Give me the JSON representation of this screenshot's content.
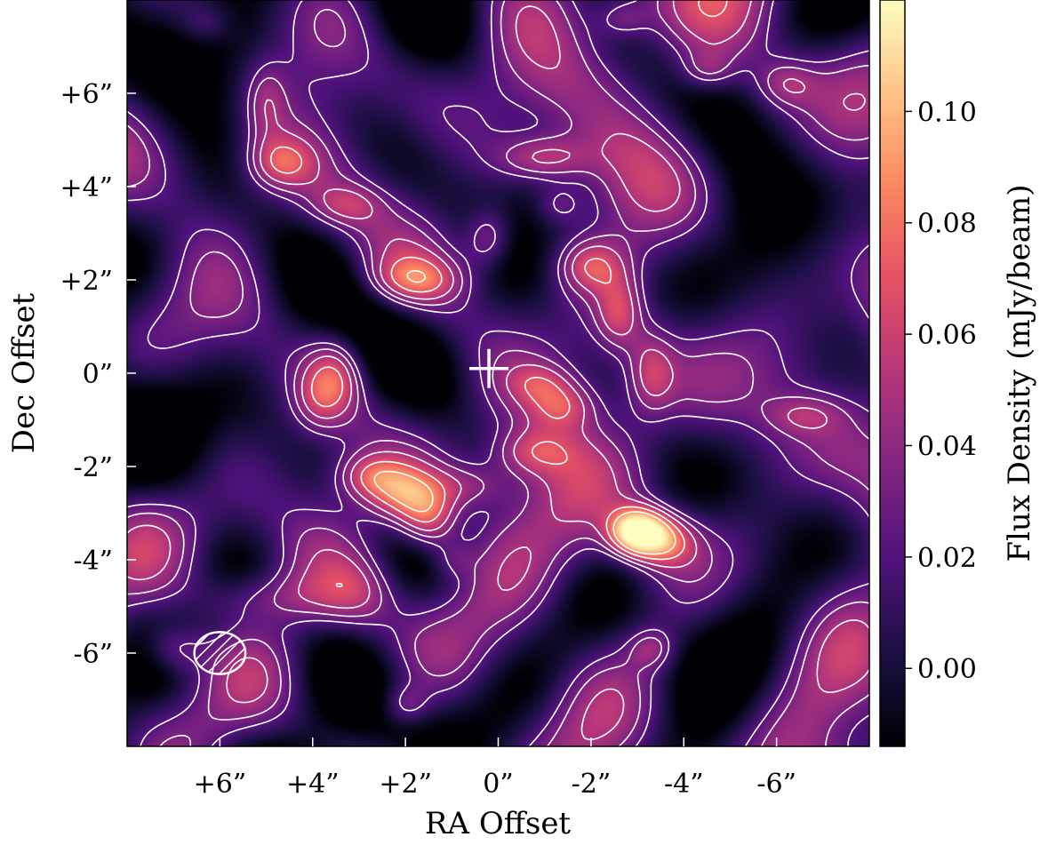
{
  "chart_data": {
    "type": "heatmap",
    "title": "",
    "xlabel": "RA Offset",
    "ylabel": "Dec Offset",
    "xlim": [
      8,
      -8
    ],
    "ylim": [
      -8,
      8
    ],
    "x_ticks": [
      6,
      4,
      2,
      0,
      -2,
      -4,
      -6
    ],
    "x_tick_labels": [
      "+6”",
      "+4”",
      "+2”",
      "0”",
      "-2”",
      "-4”",
      "-6”"
    ],
    "y_ticks": [
      6,
      4,
      2,
      0,
      -2,
      -4,
      -6
    ],
    "y_tick_labels": [
      "+6”",
      "+4”",
      "+2”",
      "0”",
      "-2”",
      "-4”",
      "-6”"
    ],
    "colorbar": {
      "label": "Flux Density (mJy/beam)",
      "range": [
        -0.014,
        0.12
      ],
      "ticks": [
        0.0,
        0.02,
        0.04,
        0.06,
        0.08,
        0.1
      ],
      "tick_labels": [
        "0.00",
        "0.02",
        "0.04",
        "0.06",
        "0.08",
        "0.10"
      ],
      "colormap": "magma",
      "stops": [
        "#000004",
        "#1c1044",
        "#4f127b",
        "#812581",
        "#b5367a",
        "#e55064",
        "#fb8761",
        "#fec287",
        "#fcfdbf"
      ]
    },
    "background_level": 0.01,
    "contour_color": "#ffffff",
    "marker": {
      "shape": "cross",
      "x": 0.2,
      "y": 0.1,
      "color": "#ffffff"
    },
    "beam": {
      "x": 6.0,
      "y": -6.0,
      "width": 1.1,
      "height": 0.9,
      "hatch": "diagonal"
    },
    "sources": [
      {
        "x": 3.5,
        "y": 0.0,
        "peak": 0.055,
        "sx": 0.45,
        "sy": 0.6
      },
      {
        "x": 3.9,
        "y": -0.6,
        "peak": 0.03,
        "sx": 0.4,
        "sy": 0.5
      },
      {
        "x": 2.0,
        "y": -2.6,
        "peak": 0.07,
        "sx": 0.6,
        "sy": 0.45
      },
      {
        "x": 1.5,
        "y": -3.2,
        "peak": 0.06,
        "sx": 0.45,
        "sy": 0.45
      },
      {
        "x": 2.8,
        "y": -2.2,
        "peak": 0.045,
        "sx": 0.5,
        "sy": 0.35
      },
      {
        "x": 0.6,
        "y": -2.4,
        "peak": 0.032,
        "sx": 0.6,
        "sy": 0.35
      },
      {
        "x": -0.7,
        "y": -1.7,
        "peak": 0.04,
        "sx": 0.6,
        "sy": 0.35
      },
      {
        "x": -3.0,
        "y": -3.4,
        "peak": 0.12,
        "sx": 0.42,
        "sy": 0.34
      },
      {
        "x": -3.6,
        "y": -3.6,
        "peak": 0.06,
        "sx": 0.5,
        "sy": 0.4
      },
      {
        "x": -2.0,
        "y": 2.3,
        "peak": 0.05,
        "sx": 0.5,
        "sy": 0.4
      },
      {
        "x": -2.6,
        "y": 1.3,
        "peak": 0.048,
        "sx": 0.35,
        "sy": 0.55
      },
      {
        "x": -3.3,
        "y": 0.0,
        "peak": 0.042,
        "sx": 0.35,
        "sy": 0.6
      },
      {
        "x": -1.4,
        "y": -0.7,
        "peak": 0.04,
        "sx": 0.5,
        "sy": 0.35
      },
      {
        "x": -0.9,
        "y": -0.2,
        "peak": 0.03,
        "sx": 0.5,
        "sy": 0.3
      },
      {
        "x": 0.2,
        "y": 2.9,
        "peak": 0.045,
        "sx": 0.35,
        "sy": 0.45
      },
      {
        "x": 1.8,
        "y": 2.0,
        "peak": 0.05,
        "sx": 0.7,
        "sy": 0.35
      },
      {
        "x": -1.0,
        "y": 4.6,
        "peak": 0.05,
        "sx": 0.7,
        "sy": 0.35
      },
      {
        "x": 4.7,
        "y": 4.5,
        "peak": 0.05,
        "sx": 0.5,
        "sy": 0.4
      },
      {
        "x": 5.0,
        "y": 5.8,
        "peak": 0.03,
        "sx": 0.3,
        "sy": 0.6
      },
      {
        "x": 3.3,
        "y": 3.6,
        "peak": 0.03,
        "sx": 0.55,
        "sy": 0.3
      },
      {
        "x": 5.0,
        "y": -4.8,
        "peak": 0.03,
        "sx": 1.2,
        "sy": 0.4
      },
      {
        "x": 3.0,
        "y": -4.7,
        "peak": 0.03,
        "sx": 0.6,
        "sy": 0.6
      },
      {
        "x": 7.0,
        "y": -5.9,
        "peak": 0.045,
        "sx": 0.5,
        "sy": 0.4
      },
      {
        "x": -4.5,
        "y": 6.5,
        "peak": 0.03,
        "sx": 0.4,
        "sy": 0.3
      },
      {
        "x": -6.2,
        "y": 6.2,
        "peak": 0.032,
        "sx": 0.45,
        "sy": 0.35
      },
      {
        "x": -3.3,
        "y": -5.9,
        "peak": 0.035,
        "sx": 0.35,
        "sy": 0.3
      },
      {
        "x": 2.0,
        "y": -7.1,
        "peak": 0.035,
        "sx": 0.35,
        "sy": 0.3
      },
      {
        "x": -6.6,
        "y": -0.9,
        "peak": 0.028,
        "sx": 0.6,
        "sy": 0.3
      },
      {
        "x": -1.3,
        "y": 3.6,
        "peak": 0.028,
        "sx": 0.35,
        "sy": 0.3
      },
      {
        "x": 1.0,
        "y": -4.0,
        "peak": 0.025,
        "sx": 0.35,
        "sy": 0.3
      },
      {
        "x": -2.7,
        "y": 7.6,
        "peak": 0.03,
        "sx": 0.4,
        "sy": 0.3
      },
      {
        "x": 6.3,
        "y": 7.5,
        "peak": 0.025,
        "sx": 0.4,
        "sy": 0.3
      }
    ]
  }
}
